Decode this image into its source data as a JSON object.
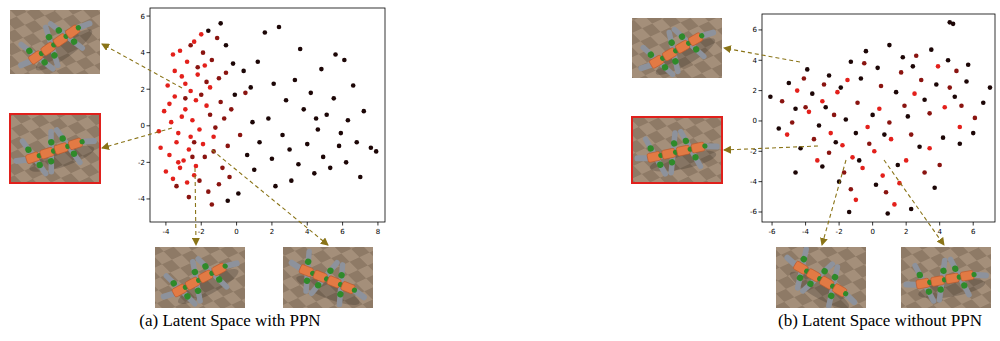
{
  "chart_data": [
    {
      "type": "scatter",
      "title": "(a) Latent Space with PPN",
      "xlim": [
        -4.9,
        8.4
      ],
      "ylim": [
        -5.26,
        6.44
      ],
      "xticks": [
        -4,
        -2,
        0,
        2,
        4,
        6,
        8
      ],
      "yticks": [
        -4,
        -2,
        0,
        2,
        4,
        6
      ],
      "grid": false,
      "marker": "circle",
      "series": [
        {
          "color": "#e3201b",
          "x": [
            -3.6,
            -3.2,
            -2.8,
            -2.4,
            -2.0,
            -3.9,
            -3.5,
            -3.1,
            -2.6,
            -2.2,
            -1.8,
            -4.1,
            -3.7,
            -3.3,
            -2.9,
            -2.5,
            -2.1,
            -1.7,
            -4.3,
            -3.8,
            -3.4,
            -3.0,
            -2.7,
            -2.3,
            -1.9,
            -4.0,
            -3.6,
            -3.2,
            -2.8,
            -2.4,
            -3.5,
            -2.9,
            -2.3,
            -3.8,
            -3.3,
            -4.4,
            -1.5,
            -1.3,
            -2.6,
            -3.1
          ],
          "values": [
            3.9,
            4.1,
            3.5,
            4.6,
            5.0,
            2.2,
            1.6,
            2.7,
            1.9,
            2.8,
            3.3,
            0.8,
            0.2,
            -0.4,
            0.9,
            0.3,
            -0.2,
            1.1,
            -1.2,
            -1.6,
            -0.9,
            -1.9,
            -1.3,
            -2.2,
            -1.0,
            -2.5,
            -2.9,
            -2.3,
            -3.1,
            -2.7,
            3.0,
            2.3,
            1.4,
            1.2,
            -2.0,
            -0.3,
            2.1,
            -0.6,
            -0.6,
            0.5
          ]
        },
        {
          "color": "#8a1410",
          "x": [
            -2.6,
            -1.9,
            -1.4,
            -1.0,
            -2.0,
            -1.5,
            -0.9,
            -1.2,
            -0.7,
            -2.4,
            -1.8,
            -1.3,
            -0.8,
            -2.1,
            -1.6,
            -1.0,
            -0.5,
            -0.3,
            -2.7,
            -1.4,
            -2.9,
            -2.2,
            -1.1,
            -0.6,
            -3.4,
            -1.7,
            -0.4,
            -2.5,
            0.2,
            0.5
          ],
          "values": [
            4.4,
            4.0,
            3.6,
            2.6,
            1.7,
            0.6,
            1.3,
            -0.1,
            0.4,
            -0.9,
            -1.7,
            -1.4,
            -2.3,
            -3.0,
            -3.6,
            -3.2,
            -1.1,
            0.9,
            -3.9,
            -4.3,
            1.5,
            3.2,
            4.8,
            2.9,
            -3.3,
            2.4,
            -2.8,
            -1.7,
            -0.5,
            1.8
          ]
        },
        {
          "color": "#1c0606",
          "x": [
            -1.6,
            -0.9,
            -0.6,
            -0.2,
            0.4,
            0.8,
            1.2,
            1.6,
            2.4,
            2.1,
            2.8,
            3.3,
            3.8,
            4.2,
            4.6,
            5.1,
            5.5,
            5.9,
            6.3,
            6.8,
            7.2,
            7.6,
            7.9,
            2.6,
            3.0,
            3.5,
            4.0,
            4.4,
            4.9,
            5.3,
            5.8,
            6.2,
            6.6,
            7.0,
            1.3,
            1.8,
            1.0,
            0.6,
            0.1,
            -0.5,
            2.2,
            3.1,
            5.6,
            4.8,
            6.1,
            3.6,
            0.9,
            -0.1,
            2.0,
            4.5
          ],
          "values": [
            5.2,
            5.6,
            4.4,
            3.4,
            3.0,
            2.1,
            3.5,
            5.1,
            5.4,
            2.3,
            1.4,
            2.5,
            0.9,
            1.8,
            -0.2,
            0.6,
            1.5,
            -0.4,
            0.3,
            -0.9,
            0.8,
            -1.2,
            -1.4,
            -0.5,
            -1.3,
            -2.1,
            -1.0,
            -2.6,
            -1.7,
            -2.3,
            -1.1,
            -2.0,
            2.2,
            -2.8,
            -0.9,
            0.4,
            -2.4,
            -1.6,
            -3.7,
            -4.1,
            -3.3,
            -3.0,
            3.9,
            3.1,
            3.6,
            4.2,
            0.2,
            1.7,
            -1.8,
            0.4
          ]
        }
      ]
    },
    {
      "type": "scatter",
      "title": "(b) Latent Space without PPN",
      "xlim": [
        -6.6,
        7.3
      ],
      "ylim": [
        -6.66,
        7.05
      ],
      "xticks": [
        -6,
        -4,
        -2,
        0,
        2,
        4,
        6
      ],
      "yticks": [
        -6,
        -4,
        -2,
        0,
        2,
        4,
        6
      ],
      "grid": false,
      "marker": "circle",
      "series": [
        {
          "color": "#e3201b",
          "x": [
            -4.5,
            -3.8,
            -3.0,
            -2.5,
            -1.8,
            -1.2,
            -0.6,
            0.1,
            0.6,
            1.1,
            -0.3,
            -2.1,
            2.0,
            1.6,
            -1.0,
            3.4,
            4.3,
            -5.1,
            0.4,
            2.5,
            -1.5,
            3.9,
            -3.3,
            1.3,
            5.2
          ],
          "values": [
            2.0,
            0.6,
            1.3,
            -0.8,
            -1.6,
            -2.4,
            -3.1,
            -2.0,
            -3.6,
            -1.2,
            -0.4,
            1.9,
            -2.6,
            -4.1,
            -5.2,
            -1.8,
            0.9,
            -0.9,
            0.8,
            1.8,
            2.7,
            3.6,
            -2.6,
            -5.5,
            -0.4
          ]
        },
        {
          "color": "#8a1410",
          "x": [
            -5.4,
            -4.8,
            -4.1,
            -3.5,
            -2.9,
            -2.3,
            -1.7,
            -0.9,
            -0.2,
            0.5,
            1.0,
            1.7,
            2.3,
            2.9,
            3.4,
            4.0,
            4.6,
            5.3,
            6.1,
            -1.3,
            0.8,
            2.6,
            -2.6,
            -4.0,
            1.9,
            3.1,
            -0.5,
            5.0
          ],
          "values": [
            1.3,
            -0.1,
            2.8,
            -1.2,
            2.4,
            0.4,
            -3.4,
            1.2,
            -1.5,
            2.3,
            -0.1,
            3.2,
            -0.9,
            2.7,
            0.5,
            -2.9,
            2.2,
            1.0,
            0.2,
            -4.5,
            -4.7,
            4.3,
            -2.1,
            0.9,
            1.0,
            -3.4,
            3.8,
            3.3
          ]
        },
        {
          "color": "#1c0606",
          "x": [
            -6.1,
            -5.6,
            -5.0,
            -4.6,
            -4.3,
            -3.9,
            -3.6,
            -3.2,
            -2.8,
            -2.6,
            -2.2,
            -1.9,
            -1.6,
            -1.3,
            -1.0,
            -0.7,
            -0.4,
            0.0,
            0.3,
            0.7,
            1.0,
            1.4,
            1.8,
            2.1,
            2.4,
            2.8,
            3.1,
            3.5,
            3.8,
            4.2,
            4.5,
            4.9,
            5.2,
            5.6,
            6.0,
            6.6,
            7.0,
            4.6,
            4.8,
            -3.0,
            -0.8,
            1.5,
            0.2,
            -2.0,
            -1.4,
            2.3,
            3.7,
            -4.6,
            0.9,
            5.7
          ],
          "values": [
            1.6,
            -0.5,
            2.5,
            0.8,
            -1.8,
            3.4,
            1.8,
            -0.3,
            0.9,
            3.0,
            -1.4,
            2.2,
            0.1,
            3.9,
            -0.8,
            2.8,
            4.6,
            0.4,
            3.5,
            -0.9,
            5.0,
            1.9,
            4.2,
            0.3,
            3.6,
            -1.7,
            1.4,
            4.7,
            2.4,
            -1.1,
            4.0,
            1.6,
            -1.5,
            2.6,
            -0.8,
            1.2,
            2.2,
            6.5,
            6.4,
            -3.0,
            -2.6,
            -2.9,
            -4.2,
            -4.0,
            -6.0,
            -5.8,
            -4.4,
            -3.4,
            -6.1,
            3.7
          ]
        }
      ]
    }
  ]
}
